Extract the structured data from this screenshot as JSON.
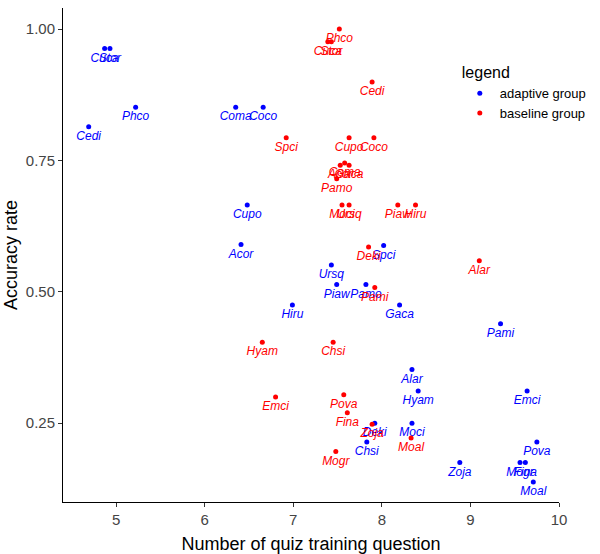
{
  "chart_data": {
    "type": "scatter",
    "x_label": "Number of quiz training question",
    "y_label": "Accuracy rate",
    "legend_title": "legend",
    "legend": "upper right",
    "grid": false,
    "xlim": [
      4.4,
      10.0
    ],
    "xticks": [
      5,
      6,
      7,
      8,
      9,
      10
    ],
    "ylim": [
      0.1,
      1.04
    ],
    "yticks": [
      0.25,
      {
        "value": 0.5,
        "label": "0.50"
      },
      0.75,
      {
        "value": 1.0,
        "label": "1.00"
      }
    ],
    "series": [
      {
        "name": "adaptive group",
        "color": "#0000ff",
        "marker": "circle",
        "labels": [
          "Cuca",
          "Stor",
          "Phco",
          "Cedi",
          "Coma",
          "Coco",
          "Cupo",
          "Acor",
          "Ursq",
          "Pamo",
          "Spci",
          "Piaw",
          "Gaca",
          "Hiru",
          "Pami",
          "Alar",
          "Hyam",
          "Emci",
          "Deki",
          "Moci",
          "Pova",
          "Chsi",
          "Zoja",
          "Mogr",
          "Fina",
          "Moal"
        ],
        "x": [
          4.87,
          4.93,
          5.22,
          4.69,
          6.35,
          6.66,
          6.48,
          6.41,
          7.43,
          7.82,
          8.02,
          7.49,
          8.2,
          6.99,
          9.34,
          8.34,
          8.41,
          9.64,
          7.92,
          8.34,
          9.75,
          7.83,
          8.88,
          9.56,
          9.62,
          9.71
        ],
        "values": [
          0.963,
          0.963,
          0.851,
          0.814,
          0.851,
          0.851,
          0.665,
          0.59,
          0.551,
          0.514,
          0.588,
          0.514,
          0.475,
          0.475,
          0.439,
          0.352,
          0.311,
          0.311,
          0.25,
          0.25,
          0.214,
          0.214,
          0.175,
          0.175,
          0.175,
          0.138
        ]
      },
      {
        "name": "baseline group",
        "color": "#ff0000",
        "marker": "circle",
        "labels": [
          "Phco",
          "Cuca",
          "Stor",
          "Cedi",
          "Spci",
          "Cupo",
          "Coco",
          "Acor",
          "Coma",
          "Gaca",
          "Pamo",
          "Moci",
          "Ursq",
          "Piaw",
          "Hiru",
          "Deki",
          "Alar",
          "Pami",
          "Chsi",
          "Hyam",
          "Pova",
          "Emci",
          "Fina",
          "Zoja",
          "Moal",
          "Mogr"
        ],
        "x": [
          7.52,
          7.39,
          7.43,
          7.89,
          6.92,
          7.63,
          7.91,
          7.53,
          7.58,
          7.63,
          7.49,
          7.55,
          7.63,
          8.18,
          8.38,
          7.85,
          9.1,
          7.92,
          7.45,
          6.65,
          7.57,
          6.8,
          7.61,
          7.89,
          8.33,
          7.48
        ],
        "values": [
          1.0,
          0.976,
          0.976,
          0.899,
          0.793,
          0.793,
          0.793,
          0.741,
          0.745,
          0.741,
          0.715,
          0.665,
          0.665,
          0.665,
          0.665,
          0.585,
          0.559,
          0.508,
          0.404,
          0.404,
          0.304,
          0.3,
          0.27,
          0.248,
          0.222,
          0.196
        ]
      }
    ]
  }
}
